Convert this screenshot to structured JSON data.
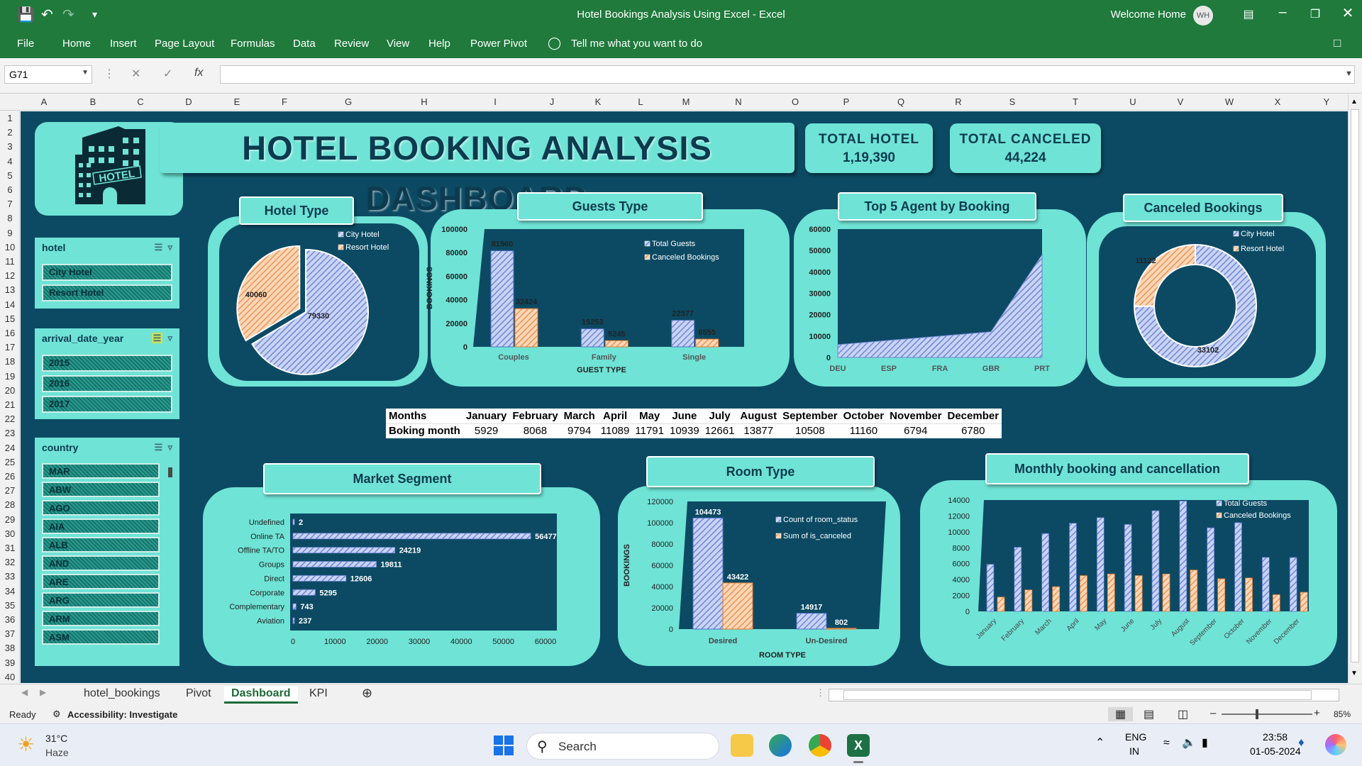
{
  "window": {
    "doc_title": "Hotel Bookings Analysis Using Excel  -  Excel",
    "welcome": "Welcome Home",
    "avatar_initials": "WH"
  },
  "menu": [
    "File",
    "Home",
    "Insert",
    "Page Layout",
    "Formulas",
    "Data",
    "Review",
    "View",
    "Help",
    "Power Pivot"
  ],
  "tell_me": "Tell me what you want to do",
  "formula_bar": {
    "name_box": "G71",
    "fx": "fx",
    "formula": ""
  },
  "columns": [
    "A",
    "B",
    "C",
    "D",
    "E",
    "F",
    "G",
    "H",
    "I",
    "J",
    "K",
    "L",
    "M",
    "N",
    "O",
    "P",
    "Q",
    "R",
    "S",
    "T",
    "U",
    "V",
    "W",
    "X",
    "Y"
  ],
  "rows": [
    "1",
    "2",
    "3",
    "4",
    "5",
    "6",
    "7",
    "8",
    "9",
    "10",
    "11",
    "12",
    "13",
    "14",
    "15",
    "16",
    "17",
    "18",
    "19",
    "20",
    "21",
    "22",
    "23",
    "24",
    "25",
    "26",
    "27",
    "28",
    "29",
    "30",
    "31",
    "32",
    "33",
    "34",
    "35",
    "36",
    "37",
    "38",
    "39",
    "40"
  ],
  "dashboard": {
    "logo_text": "HOTEL",
    "title": "HOTEL BOOKING ANALYSIS DASHBOARD",
    "kpi_total_hotel": {
      "label": "TOTAL HOTEL",
      "value": "1,19,390"
    },
    "kpi_total_canceled": {
      "label": "TOTAL CANCELED",
      "value": "44,224"
    },
    "colors": {
      "canvas": "#0c4a63",
      "panel": "#6fe3d6",
      "series_blue": "#8fa6e8",
      "series_orange": "#f2a46a"
    }
  },
  "slicers": {
    "hotel": {
      "title": "hotel",
      "items": [
        "City Hotel",
        "Resort Hotel"
      ]
    },
    "year": {
      "title": "arrival_date_year",
      "items": [
        "2015",
        "2016",
        "2017"
      ]
    },
    "country": {
      "title": "country",
      "items": [
        "MAR",
        "ABW",
        "AGO",
        "AIA",
        "ALB",
        "AND",
        "ARE",
        "ARG",
        "ARM",
        "ASM"
      ]
    }
  },
  "months_table": {
    "header_label": "Months",
    "row_label": "Boking month",
    "months": [
      "January",
      "February",
      "March",
      "April",
      "May",
      "June",
      "July",
      "August",
      "September",
      "October",
      "November",
      "December"
    ],
    "values": [
      "5929",
      "8068",
      "9794",
      "11089",
      "11791",
      "10939",
      "12661",
      "13877",
      "10508",
      "11160",
      "6794",
      "6780"
    ]
  },
  "chart_data": [
    {
      "id": "hotel-type",
      "type": "pie",
      "title": "Hotel Type",
      "labels": [
        "City Hotel",
        "Resort Hotel"
      ],
      "values": [
        79330,
        40060
      ],
      "legend": "top-right"
    },
    {
      "id": "guests-type",
      "type": "bar",
      "title": "Guests Type",
      "categories": [
        "Couples",
        "Family",
        "Single"
      ],
      "series": [
        {
          "name": "Total Guests",
          "values": [
            81560,
            15253,
            22577
          ]
        },
        {
          "name": "Canceled Bookings",
          "values": [
            32424,
            5245,
            6555
          ]
        }
      ],
      "xlabel": "GUEST TYPE",
      "ylabel": "BOOKINGS",
      "yticks": [
        "0",
        "20000",
        "40000",
        "60000",
        "80000",
        "100000"
      ],
      "ylim": [
        0,
        100000
      ]
    },
    {
      "id": "top-agents",
      "type": "area",
      "title": "Top 5 Agent by Booking",
      "categories": [
        "DEU",
        "ESP",
        "FRA",
        "GBR",
        "PRT"
      ],
      "values": [
        6000,
        8000,
        10000,
        12000,
        48000
      ],
      "yticks": [
        "0",
        "10000",
        "20000",
        "30000",
        "40000",
        "50000",
        "60000"
      ],
      "ylim": [
        0,
        60000
      ]
    },
    {
      "id": "canceled-bookings",
      "type": "pie",
      "title": "Canceled Bookings",
      "labels": [
        "City Hotel",
        "Resort Hotel"
      ],
      "values": [
        33102,
        11122
      ],
      "legend": "top-right"
    },
    {
      "id": "market-segment",
      "type": "bar",
      "title": "Market Segment",
      "categories": [
        "Undefined",
        "Online TA",
        "Offline TA/TO",
        "Groups",
        "Direct",
        "Corporate",
        "Complementary",
        "Aviation"
      ],
      "values": [
        2,
        56477,
        24219,
        19811,
        12606,
        5295,
        743,
        237
      ],
      "xticks": [
        "0",
        "10000",
        "20000",
        "30000",
        "40000",
        "50000",
        "60000"
      ],
      "xlim": [
        0,
        60000
      ]
    },
    {
      "id": "room-type",
      "type": "bar",
      "title": "Room Type",
      "categories": [
        "Desired",
        "Un-Desired"
      ],
      "series": [
        {
          "name": "Count of room_status",
          "values": [
            104473,
            14917
          ]
        },
        {
          "name": "Sum of is_canceled",
          "values": [
            43422,
            802
          ]
        }
      ],
      "xlabel": "ROOM TYPE",
      "ylabel": "BOOKINGS",
      "yticks": [
        "0",
        "20000",
        "40000",
        "60000",
        "80000",
        "100000",
        "120000"
      ],
      "ylim": [
        0,
        120000
      ]
    },
    {
      "id": "monthly",
      "type": "bar",
      "title": "Monthly booking and cancellation",
      "categories": [
        "January",
        "February",
        "March",
        "April",
        "May",
        "June",
        "July",
        "August",
        "September",
        "October",
        "November",
        "December"
      ],
      "series": [
        {
          "name": "Total Guests",
          "values": [
            5929,
            8068,
            9794,
            11089,
            11791,
            10939,
            12661,
            13877,
            10508,
            11160,
            6794,
            6780
          ]
        },
        {
          "name": "Canceled Bookings",
          "values": [
            1800,
            2700,
            3100,
            4500,
            4700,
            4500,
            4700,
            5200,
            4100,
            4200,
            2100,
            2400
          ]
        }
      ],
      "yticks": [
        "0",
        "2000",
        "4000",
        "6000",
        "8000",
        "10000",
        "12000",
        "14000"
      ],
      "ylim": [
        0,
        14000
      ]
    }
  ],
  "sheets": [
    "hotel_bookings",
    "Pivot",
    "Dashboard",
    "KPI"
  ],
  "status": {
    "ready": "Ready",
    "accessibility": "Accessibility: Investigate",
    "zoom": "85%"
  },
  "taskbar": {
    "temp": "31°C",
    "weather": "Haze",
    "search": "Search",
    "lang1": "ENG",
    "lang2": "IN",
    "time": "23:58",
    "date": "01-05-2024"
  }
}
